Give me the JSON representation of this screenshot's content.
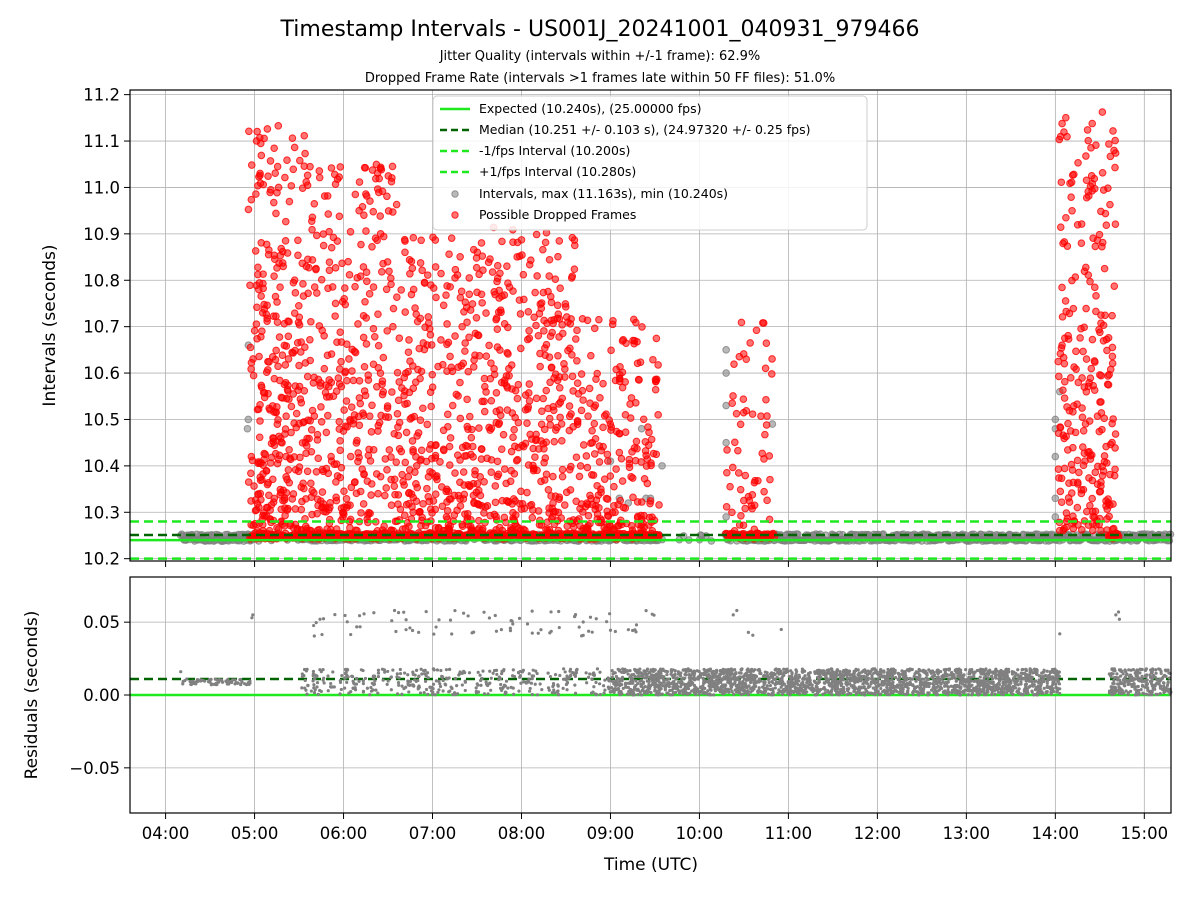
{
  "chart_data": [
    {
      "type": "scatter",
      "title": "Timestamp Intervals - US001J_20241001_040931_979466",
      "subtitles": [
        "Jitter Quality (intervals within +/-1 frame): 62.9%",
        "Dropped Frame Rate (intervals >1 frames late within 50 FF files): 51.0%"
      ],
      "ylabel": "Intervals (seconds)",
      "ylim": [
        10.195,
        11.21
      ],
      "yticks": [
        10.2,
        10.3,
        10.4,
        10.5,
        10.6,
        10.7,
        10.8,
        10.9,
        11.0,
        11.1,
        11.2
      ],
      "ytick_labels": [
        "10.2",
        "10.3",
        "10.4",
        "10.5",
        "10.6",
        "10.7",
        "10.8",
        "10.9",
        "11.0",
        "11.1",
        "11.2"
      ],
      "x_units": "hours (UTC)",
      "xlim": [
        3.6,
        15.3
      ],
      "xticks": [
        4,
        5,
        6,
        7,
        8,
        9,
        10,
        11,
        12,
        13,
        14,
        15
      ],
      "grid": true,
      "legend_position": "top-center",
      "lines": [
        {
          "name": "Expected (10.240s), (25.00000 fps)",
          "y": 10.24,
          "color": "#1ee81e",
          "style": "solid"
        },
        {
          "name": "Median (10.251 +/- 0.103 s), (24.97320 +/- 0.25 fps)",
          "y": 10.251,
          "color": "#006400",
          "style": "dashed"
        },
        {
          "name": "-1/fps Interval (10.200s)",
          "y": 10.2,
          "color": "#1ee81e",
          "style": "dashed"
        },
        {
          "name": "+1/fps Interval (10.280s)",
          "y": 10.28,
          "color": "#1ee81e",
          "style": "dashed"
        }
      ],
      "series": [
        {
          "name": "Intervals, max (11.163s), min (10.240s)",
          "color": "#808080",
          "baseline": {
            "x_start": 4.17,
            "x_end": 15.3,
            "y_values": [
              10.24,
              10.251
            ],
            "gaps": [
              [
                5.0,
                5.5
              ],
              [
                9.55,
                10.3
              ]
            ]
          },
          "extra_points": [
            [
              4.92,
              10.48
            ],
            [
              4.93,
              10.5
            ],
            [
              4.93,
              10.66
            ],
            [
              9.0,
              10.41
            ],
            [
              9.1,
              10.33
            ],
            [
              9.2,
              10.32
            ],
            [
              9.35,
              10.48
            ],
            [
              9.4,
              10.33
            ],
            [
              9.45,
              10.33
            ],
            [
              9.58,
              10.4
            ],
            [
              10.3,
              10.65
            ],
            [
              10.3,
              10.6
            ],
            [
              10.3,
              10.53
            ],
            [
              10.3,
              10.45
            ],
            [
              10.3,
              10.29
            ],
            [
              10.82,
              10.49
            ],
            [
              14.0,
              10.42
            ],
            [
              14.0,
              10.33
            ],
            [
              14.0,
              10.29
            ],
            [
              14.0,
              10.5
            ],
            [
              14.05,
              10.56
            ],
            [
              14.0,
              10.48
            ]
          ]
        },
        {
          "name": "Possible Dropped Frames",
          "color": "#ff0000",
          "clusters": [
            {
              "x_range": [
                4.93,
                5.6
              ],
              "y_max": 11.14,
              "count": 320
            },
            {
              "x_range": [
                5.6,
                6.6
              ],
              "y_max": 11.05,
              "count": 330
            },
            {
              "x_range": [
                6.6,
                7.6
              ],
              "y_max": 10.9,
              "count": 320
            },
            {
              "x_range": [
                7.6,
                8.6
              ],
              "y_max": 10.92,
              "count": 320
            },
            {
              "x_range": [
                8.6,
                9.55
              ],
              "y_max": 10.72,
              "count": 220
            },
            {
              "x_range": [
                10.3,
                10.82
              ],
              "y_max": 10.72,
              "count": 60
            },
            {
              "x_range": [
                14.03,
                14.68
              ],
              "y_max": 11.163,
              "count": 260
            }
          ],
          "baseline_band": [
            [
              4.95,
              9.55
            ],
            [
              10.3,
              10.85
            ],
            [
              14.6,
              14.72
            ]
          ]
        }
      ]
    },
    {
      "type": "scatter",
      "ylabel": "Residuals (seconds)",
      "xlabel": "Time (UTC)",
      "ylim": [
        -0.081,
        0.081
      ],
      "yticks": [
        -0.05,
        0.0,
        0.05
      ],
      "ytick_labels": [
        "−0.05",
        "0.00",
        "0.05"
      ],
      "xlim": [
        3.6,
        15.3
      ],
      "xticks": [
        4,
        5,
        6,
        7,
        8,
        9,
        10,
        11,
        12,
        13,
        14,
        15
      ],
      "xtick_labels": [
        "04:00",
        "05:00",
        "06:00",
        "07:00",
        "08:00",
        "09:00",
        "10:00",
        "11:00",
        "12:00",
        "13:00",
        "14:00",
        "15:00"
      ],
      "grid": true,
      "lines": [
        {
          "name": "Expected",
          "y": 0.0,
          "color": "#1ee81e",
          "style": "solid"
        },
        {
          "name": "Median",
          "y": 0.011,
          "color": "#006400",
          "style": "dashed"
        }
      ],
      "series": [
        {
          "name": "Residuals",
          "color": "#808080",
          "bands": [
            {
              "x_range": [
                4.17,
                4.95
              ],
              "y_range": [
                0.007,
                0.011
              ],
              "count": 70
            },
            {
              "x_range": [
                5.5,
                9.0
              ],
              "y_range": [
                0.0,
                0.018
              ],
              "count": 380
            },
            {
              "x_range": [
                9.0,
                14.05
              ],
              "y_range": [
                0.0,
                0.018
              ],
              "count": 2200
            },
            {
              "x_range": [
                14.6,
                15.3
              ],
              "y_range": [
                0.0,
                0.018
              ],
              "count": 250
            }
          ],
          "high_band": {
            "x_range": [
              5.5,
              9.5
            ],
            "y_range": [
              0.04,
              0.058
            ],
            "count": 80
          },
          "extra_points": [
            [
              4.17,
              0.016
            ],
            [
              4.97,
              0.053
            ],
            [
              4.98,
              0.055
            ],
            [
              10.38,
              0.055
            ],
            [
              10.42,
              0.058
            ],
            [
              10.55,
              0.043
            ],
            [
              10.6,
              0.041
            ],
            [
              10.92,
              0.045
            ],
            [
              14.05,
              0.042
            ],
            [
              14.68,
              0.055
            ],
            [
              14.71,
              0.057
            ],
            [
              14.72,
              0.052
            ]
          ]
        }
      ]
    }
  ]
}
